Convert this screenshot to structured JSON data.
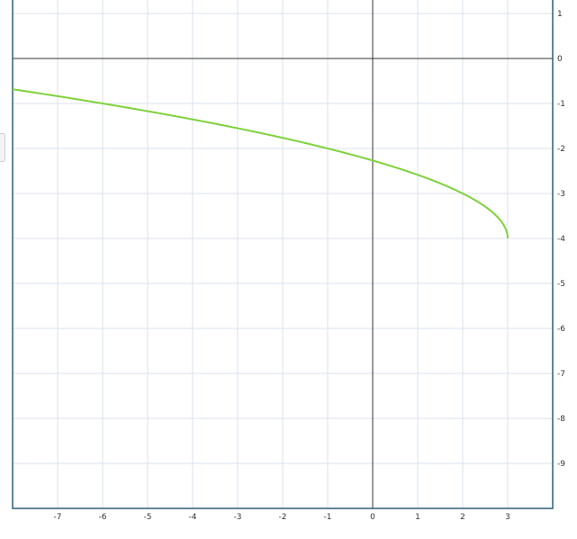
{
  "chart_data": {
    "type": "line",
    "function": "y = sqrt(3 - x) - 4",
    "series": [
      {
        "points": [
          [
            -8,
            -0.683
          ],
          [
            -7,
            -0.838
          ],
          [
            -6,
            -1
          ],
          [
            -5,
            -1.172
          ],
          [
            -4,
            -1.354
          ],
          [
            -3,
            -1.551
          ],
          [
            -2,
            -1.764
          ],
          [
            -1,
            -2
          ],
          [
            0,
            -2.268
          ],
          [
            1,
            -2.586
          ],
          [
            2,
            -3
          ],
          [
            2.5,
            -3.293
          ],
          [
            3,
            -4
          ]
        ]
      }
    ],
    "xlim": [
      -8,
      4
    ],
    "ylim": [
      -10,
      1.3
    ],
    "x_ticks": [
      -7,
      -6,
      -5,
      -4,
      -3,
      -2,
      -1,
      0,
      1,
      2,
      3
    ],
    "y_ticks": [
      1,
      0,
      -1,
      -2,
      -3,
      -4,
      -5,
      -6,
      -7,
      -8,
      -9
    ],
    "grid": true,
    "colors": {
      "curve": "#7fd23c",
      "grid": "#dde0ec",
      "axis": "#333333",
      "border": "#2e5d7a"
    }
  }
}
